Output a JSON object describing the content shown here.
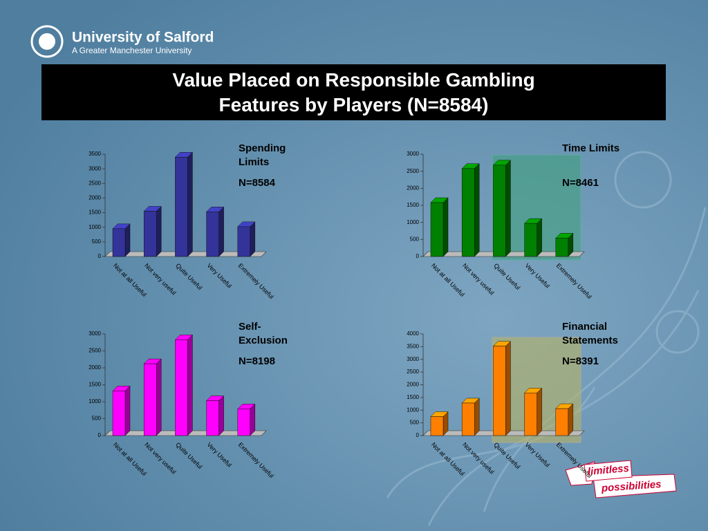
{
  "header": {
    "brand": "University of Salford",
    "tagline": "A Greater Manchester University",
    "title": "Value Placed on Responsible Gambling Features by Players (N=8584)"
  },
  "chart_data": [
    {
      "type": "bar",
      "label": "Spending Limits",
      "sample": "N=8584",
      "categories": [
        "Not at all Useful",
        "Not very useful",
        "Quite Useful",
        "Very Useful",
        "Extremely Useful"
      ],
      "values": [
        950,
        1550,
        3400,
        1530,
        1020
      ],
      "color": "#333399",
      "ylim": [
        0,
        3500
      ],
      "yticks": [
        0,
        500,
        1000,
        1500,
        2000,
        2500,
        3000,
        3500
      ]
    },
    {
      "type": "bar",
      "label": "Time Limits",
      "sample": "N=8461",
      "categories": [
        "Not at all Useful",
        "Not very useful",
        "Quite Useful",
        "Very Useful",
        "Extremely Useful"
      ],
      "values": [
        1580,
        2580,
        2680,
        970,
        540
      ],
      "color": "#008000",
      "ylim": [
        0,
        3000
      ],
      "yticks": [
        0,
        500,
        1000,
        1500,
        2000,
        2500,
        3000
      ]
    },
    {
      "type": "bar",
      "label": "Self-Exclusion",
      "sample": "N=8198",
      "categories": [
        "Not at all Useful",
        "Not very useful",
        "Quite Useful",
        "Very Useful",
        "Extremely Useful"
      ],
      "values": [
        1320,
        2120,
        2830,
        1030,
        790
      ],
      "color": "#ff00ff",
      "ylim": [
        0,
        3000
      ],
      "yticks": [
        0,
        500,
        1000,
        1500,
        2000,
        2500,
        3000
      ]
    },
    {
      "type": "bar",
      "label": "Financial Statements",
      "sample": "N=8391",
      "categories": [
        "Not at all Useful",
        "Not very useful",
        "Quite Useful",
        "Very Useful",
        "Extremely Useful"
      ],
      "values": [
        750,
        1280,
        3520,
        1680,
        1060
      ],
      "color": "#ff8000",
      "ylim": [
        0,
        4000
      ],
      "yticks": [
        0,
        500,
        1000,
        1500,
        2000,
        2500,
        3000,
        3500,
        4000
      ]
    }
  ],
  "banner": [
    "limitless",
    "possibilities"
  ]
}
